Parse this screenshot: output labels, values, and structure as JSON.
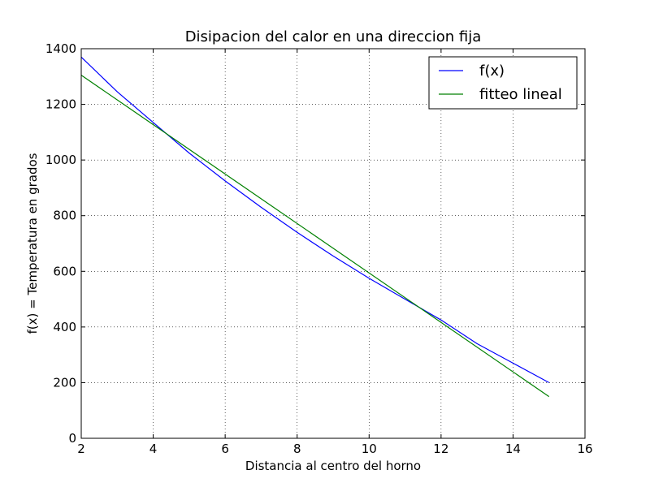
{
  "chart_data": {
    "type": "line",
    "title": "Disipacion del calor en una direccion fija",
    "xlabel": "Distancia al centro del horno",
    "ylabel": "f(x) = Temperatura en grados",
    "xlim": [
      2,
      16
    ],
    "ylim": [
      0,
      1400
    ],
    "xticks": [
      "2",
      "4",
      "6",
      "8",
      "10",
      "12",
      "14",
      "16"
    ],
    "yticks": [
      "0",
      "200",
      "400",
      "600",
      "800",
      "1000",
      "1200",
      "1400"
    ],
    "grid": true,
    "legend_position": "top-right",
    "series": [
      {
        "name": "f(x)",
        "color": "#0000ff",
        "x": [
          2,
          3,
          4,
          5,
          6,
          7,
          8,
          9,
          10,
          11,
          12,
          13,
          14,
          15
        ],
        "y": [
          1370,
          1245,
          1135,
          1025,
          925,
          830,
          740,
          655,
          575,
          500,
          425,
          340,
          270,
          200
        ]
      },
      {
        "name": "fitteo lineal",
        "color": "#008000",
        "x": [
          2,
          15
        ],
        "y": [
          1305,
          150
        ]
      }
    ]
  }
}
